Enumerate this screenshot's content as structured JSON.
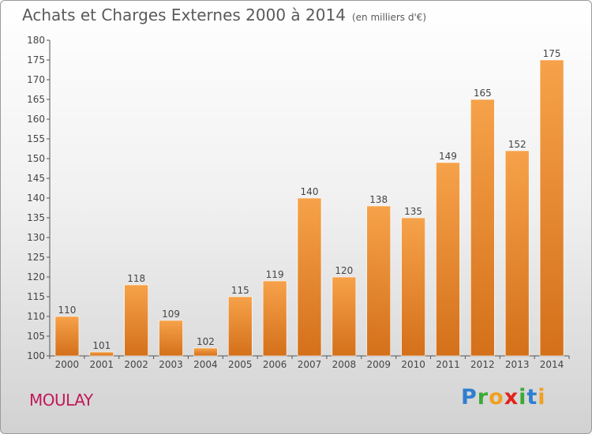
{
  "chart_data": {
    "type": "bar",
    "title": "Achats et Charges Externes 2000 à 2014",
    "subtitle": "(en milliers d'€)",
    "categories": [
      "2000",
      "2001",
      "2002",
      "2003",
      "2004",
      "2005",
      "2006",
      "2007",
      "2008",
      "2009",
      "2010",
      "2011",
      "2012",
      "2013",
      "2014"
    ],
    "values": [
      110,
      101,
      118,
      109,
      102,
      115,
      119,
      140,
      120,
      138,
      135,
      149,
      165,
      152,
      175
    ],
    "ylim": [
      100,
      180
    ],
    "yticks": [
      100,
      105,
      110,
      115,
      120,
      125,
      130,
      135,
      140,
      145,
      150,
      155,
      160,
      165,
      170,
      175,
      180
    ],
    "xlabel": "",
    "ylabel": "",
    "grid": false,
    "bar_color_top": "#f6a24a",
    "bar_color_bottom": "#d4701a"
  },
  "place_name": "MOULAY",
  "logo_letters": [
    {
      "ch": "P",
      "color": "#2f7fd0"
    },
    {
      "ch": "r",
      "color": "#3aaa35"
    },
    {
      "ch": "o",
      "color": "#f0a020"
    },
    {
      "ch": "x",
      "color": "#e2231a"
    },
    {
      "ch": "i",
      "color": "#3aaa35"
    },
    {
      "ch": "t",
      "color": "#2f7fd0"
    },
    {
      "ch": "i",
      "color": "#f0a020"
    }
  ]
}
